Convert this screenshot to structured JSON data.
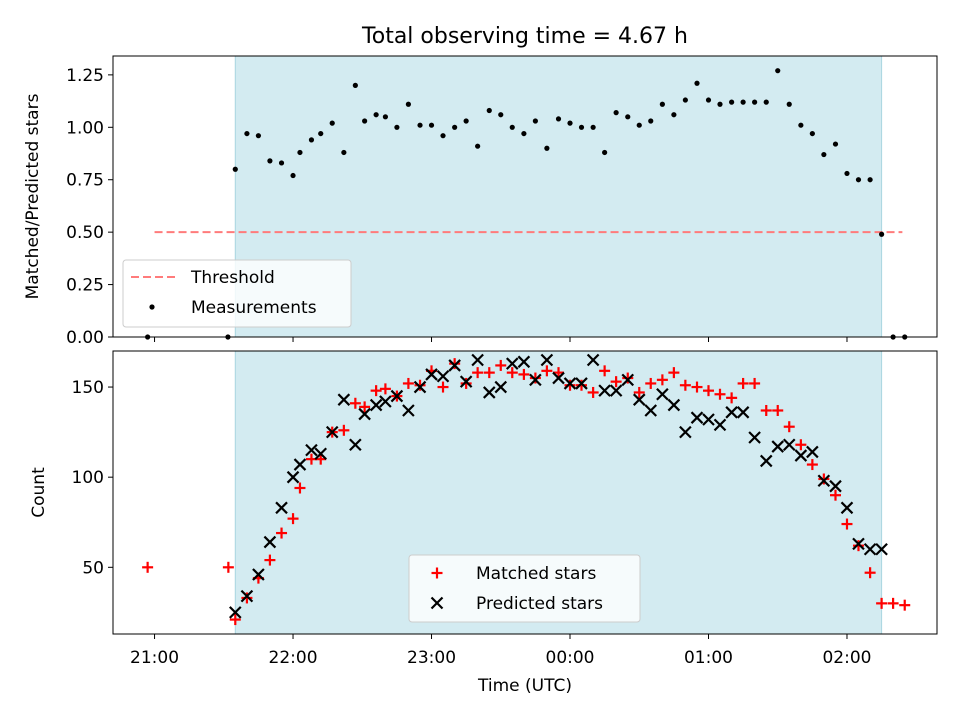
{
  "chart_data": [
    {
      "type": "scatter",
      "title": "Total observing time = 4.67 h",
      "ylabel": "Matched/Predicted stars",
      "xlabel": "",
      "x_unit": "hours since 21:00 UTC",
      "xlim": [
        -0.3,
        5.65
      ],
      "ylim": [
        0,
        1.34
      ],
      "yticks": [
        0.0,
        0.25,
        0.5,
        0.75,
        1.0,
        1.25
      ],
      "ytick_labels": [
        "0.00",
        "0.25",
        "0.50",
        "0.75",
        "1.00",
        "1.25"
      ],
      "observing_window": [
        0.583,
        5.25
      ],
      "window_color": "#d3ebf1",
      "legend_position": "lower-left",
      "threshold": {
        "name": "Threshold",
        "value": 0.5,
        "x_range": [
          0,
          5.4
        ],
        "color": "#ff7b7b"
      },
      "series": [
        {
          "name": "Measurements",
          "marker": "dot",
          "color": "#000000",
          "x": [
            -0.05,
            0.53,
            0.583,
            0.667,
            0.75,
            0.833,
            0.917,
            1.0,
            1.05,
            1.133,
            1.2,
            1.283,
            1.367,
            1.45,
            1.517,
            1.6,
            1.667,
            1.75,
            1.833,
            1.917,
            2.0,
            2.083,
            2.167,
            2.25,
            2.333,
            2.417,
            2.5,
            2.583,
            2.667,
            2.75,
            2.833,
            2.917,
            3.0,
            3.083,
            3.167,
            3.25,
            3.333,
            3.417,
            3.5,
            3.583,
            3.667,
            3.75,
            3.833,
            3.917,
            4.0,
            4.083,
            4.167,
            4.25,
            4.333,
            4.417,
            4.5,
            4.583,
            4.667,
            4.75,
            4.833,
            4.917,
            5.0,
            5.083,
            5.167,
            5.25,
            5.333,
            5.417
          ],
          "y": [
            0.0,
            0.0,
            0.8,
            0.97,
            0.96,
            0.84,
            0.83,
            0.77,
            0.88,
            0.94,
            0.97,
            1.02,
            0.88,
            1.2,
            1.03,
            1.06,
            1.05,
            1.0,
            1.11,
            1.01,
            1.01,
            0.96,
            1.0,
            1.03,
            0.91,
            1.08,
            1.06,
            1.0,
            0.97,
            1.03,
            0.9,
            1.04,
            1.02,
            1.0,
            1.0,
            0.88,
            1.07,
            1.05,
            1.01,
            1.03,
            1.11,
            1.06,
            1.13,
            1.21,
            1.13,
            1.11,
            1.12,
            1.12,
            1.12,
            1.12,
            1.27,
            1.11,
            1.01,
            0.97,
            0.87,
            0.92,
            0.78,
            0.75,
            0.75,
            0.49,
            0.0,
            0.0
          ]
        }
      ]
    },
    {
      "type": "scatter",
      "title": "",
      "xlabel": "Time (UTC)",
      "ylabel": "Count",
      "x_unit": "hours since 21:00 UTC",
      "xlim": [
        -0.3,
        5.65
      ],
      "ylim": [
        13,
        170
      ],
      "yticks": [
        50,
        100,
        150
      ],
      "ytick_labels": [
        "50",
        "100",
        "150"
      ],
      "xticks": [
        0,
        1,
        2,
        3,
        4,
        5
      ],
      "xtick_labels": [
        "21:00",
        "22:00",
        "23:00",
        "00:00",
        "01:00",
        "02:00"
      ],
      "observing_window": [
        0.583,
        5.25
      ],
      "window_color": "#d3ebf1",
      "legend_position": "lower-center",
      "series": [
        {
          "name": "Matched stars",
          "marker": "plus",
          "color": "#ff0000",
          "x": [
            -0.05,
            0.533,
            0.583,
            0.667,
            0.75,
            0.833,
            0.917,
            1.0,
            1.05,
            1.133,
            1.2,
            1.283,
            1.367,
            1.45,
            1.517,
            1.6,
            1.667,
            1.75,
            1.833,
            1.917,
            2.0,
            2.083,
            2.167,
            2.25,
            2.333,
            2.417,
            2.5,
            2.583,
            2.667,
            2.75,
            2.833,
            2.917,
            3.0,
            3.083,
            3.167,
            3.25,
            3.333,
            3.417,
            3.5,
            3.583,
            3.667,
            3.75,
            3.833,
            3.917,
            4.0,
            4.083,
            4.167,
            4.25,
            4.333,
            4.417,
            4.5,
            4.583,
            4.667,
            4.75,
            4.833,
            4.917,
            5.0,
            5.083,
            5.167,
            5.25,
            5.333,
            5.417
          ],
          "y": [
            50,
            50,
            21,
            33,
            44,
            54,
            69,
            77,
            94,
            110,
            110,
            125,
            126,
            141,
            139,
            148,
            149,
            145,
            152,
            151,
            159,
            150,
            163,
            152,
            158,
            158,
            162,
            158,
            157,
            155,
            159,
            158,
            151,
            151,
            147,
            159,
            153,
            155,
            147,
            152,
            154,
            158,
            151,
            150,
            148,
            146,
            144,
            152,
            152,
            137,
            137,
            128,
            118,
            107,
            99,
            90,
            74,
            62,
            47,
            30,
            30,
            29
          ]
        },
        {
          "name": "Predicted stars",
          "marker": "x",
          "color": "#000000",
          "x": [
            0.583,
            0.667,
            0.75,
            0.833,
            0.917,
            1.0,
            1.05,
            1.133,
            1.2,
            1.283,
            1.367,
            1.45,
            1.517,
            1.6,
            1.667,
            1.75,
            1.833,
            1.917,
            2.0,
            2.083,
            2.167,
            2.25,
            2.333,
            2.417,
            2.5,
            2.583,
            2.667,
            2.75,
            2.833,
            2.917,
            3.0,
            3.083,
            3.167,
            3.25,
            3.333,
            3.417,
            3.5,
            3.583,
            3.667,
            3.75,
            3.833,
            3.917,
            4.0,
            4.083,
            4.167,
            4.25,
            4.333,
            4.417,
            4.5,
            4.583,
            4.667,
            4.75,
            4.833,
            4.917,
            5.0,
            5.083,
            5.167,
            5.25
          ],
          "y": [
            25,
            34,
            46,
            64,
            83,
            100,
            107,
            115,
            113,
            125,
            143,
            118,
            135,
            140,
            142,
            145,
            137,
            150,
            157,
            156,
            162,
            153,
            165,
            147,
            150,
            163,
            164,
            154,
            165,
            155,
            152,
            152,
            165,
            148,
            148,
            154,
            143,
            137,
            146,
            140,
            125,
            133,
            132,
            129,
            136,
            136,
            122,
            109,
            117,
            118,
            112,
            114,
            98,
            95,
            83,
            63,
            60,
            60
          ]
        }
      ]
    }
  ]
}
